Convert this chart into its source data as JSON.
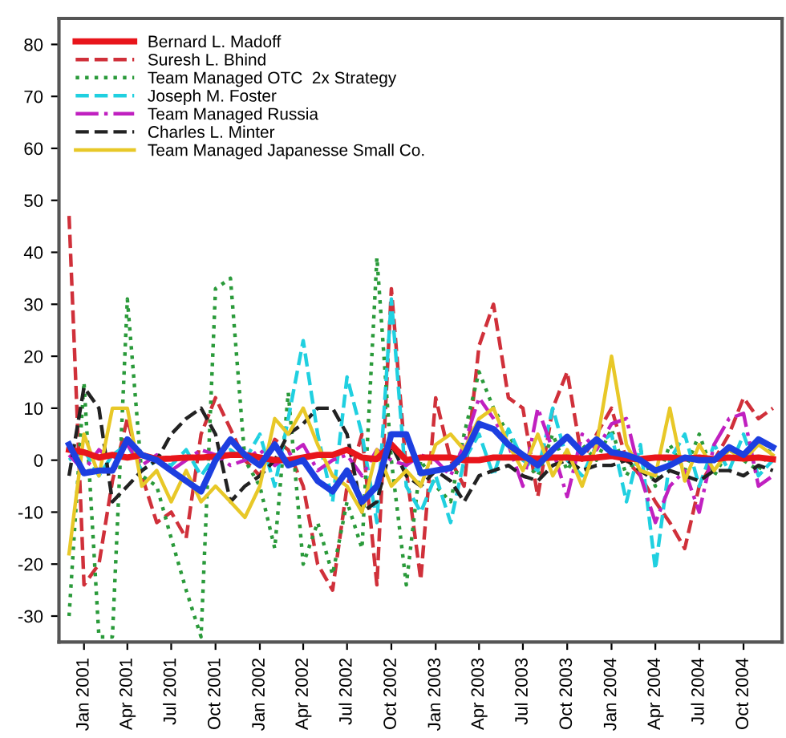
{
  "chart_data": {
    "type": "line",
    "legend": "top left",
    "grid": false,
    "marker": "none",
    "x": [
      "2000-12",
      "2001-01",
      "2001-02",
      "2001-03",
      "2001-04",
      "2001-05",
      "2001-06",
      "2001-07",
      "2001-08",
      "2001-09",
      "2001-10",
      "2001-11",
      "2001-12",
      "2002-01",
      "2002-02",
      "2002-03",
      "2002-04",
      "2002-05",
      "2002-06",
      "2002-07",
      "2002-08",
      "2002-09",
      "2002-10",
      "2002-11",
      "2002-12",
      "2003-01",
      "2003-02",
      "2003-03",
      "2003-04",
      "2003-05",
      "2003-06",
      "2003-07",
      "2003-08",
      "2003-09",
      "2003-10",
      "2003-11",
      "2003-12",
      "2004-01",
      "2004-02",
      "2004-03",
      "2004-04",
      "2004-05",
      "2004-06",
      "2004-07",
      "2004-08",
      "2004-09",
      "2004-10",
      "2004-11",
      "2004-12"
    ],
    "xlim": [
      "2000-11-10",
      "2004-12-20"
    ],
    "xticks": [
      {
        "value": "2001-01",
        "label": "Jan 2001"
      },
      {
        "value": "2001-04",
        "label": "Apr 2001"
      },
      {
        "value": "2001-07",
        "label": "Jul 2001"
      },
      {
        "value": "2001-10",
        "label": "Oct 2001"
      },
      {
        "value": "2002-01",
        "label": "Jan 2002"
      },
      {
        "value": "2002-04",
        "label": "Apr 2002"
      },
      {
        "value": "2002-07",
        "label": "Jul 2002"
      },
      {
        "value": "2002-10",
        "label": "Oct 2002"
      },
      {
        "value": "2003-01",
        "label": "Jan 2003"
      },
      {
        "value": "2003-04",
        "label": "Apr 2003"
      },
      {
        "value": "2003-07",
        "label": "Jul 2003"
      },
      {
        "value": "2003-10",
        "label": "Oct 2003"
      },
      {
        "value": "2004-01",
        "label": "Jan 2004"
      },
      {
        "value": "2004-04",
        "label": "Apr 2004"
      },
      {
        "value": "2004-07",
        "label": "Jul 2004"
      },
      {
        "value": "2004-10",
        "label": "Oct 2004"
      }
    ],
    "ylim": [
      -35,
      85
    ],
    "yticks": [
      -30,
      -20,
      -10,
      0,
      10,
      20,
      30,
      40,
      50,
      60,
      70,
      80
    ],
    "series": [
      {
        "name": "Bernard L. Madoff",
        "color": "#e8151b",
        "line_style": "solid",
        "values": [
          2,
          1.5,
          0.5,
          1,
          0.5,
          1,
          0.2,
          0.3,
          0.5,
          0.5,
          0.7,
          1,
          1,
          0.5,
          0,
          0,
          0.5,
          1,
          1,
          2,
          0.5,
          0.2,
          3,
          0,
          0.5,
          0.5,
          0.5,
          0,
          0,
          0.5,
          0.5,
          0.5,
          0.3,
          0.5,
          0.5,
          0.3,
          0.5,
          0.8,
          0.3,
          0.2,
          0.5,
          0.5,
          0.3,
          0.5,
          0.2,
          0.5,
          0.3,
          0.5,
          0.2
        ]
      },
      {
        "color": "#1d3fe0",
        "line_style": "solid",
        "values": [
          3,
          -2.5,
          -2,
          -2,
          4,
          1,
          0,
          -2,
          -4,
          -6,
          0,
          4,
          1,
          -1,
          3,
          -1,
          0,
          -4,
          -6,
          -2,
          -8,
          -5,
          5,
          5,
          -2.5,
          -2,
          -1.5,
          1,
          7,
          6,
          3,
          1,
          -1,
          2,
          4.5,
          1.5,
          4,
          1.5,
          1,
          0,
          -2,
          -1,
          0.5,
          0,
          0,
          2.5,
          1,
          4,
          2.5
        ]
      },
      {
        "name": "Suresh L. Bhind",
        "color": "#d0303a",
        "line_style": "dashed",
        "values": [
          47,
          -24,
          -20,
          -4,
          8,
          -3,
          -12,
          -10,
          -15,
          5,
          12,
          6,
          0,
          -3,
          4,
          2,
          -5,
          -20,
          -25,
          -5,
          5,
          -24,
          33,
          -2,
          -23,
          12,
          0,
          -5,
          22,
          30,
          12,
          10,
          -7,
          10,
          17,
          0,
          5,
          10,
          0,
          -3,
          -8,
          -12,
          -17,
          -5,
          0,
          5,
          12,
          8,
          10
        ]
      },
      {
        "name": "Team Managed OTC  2x Strategy",
        "color": "#2a9a3a",
        "line_style": "dotted",
        "values": [
          -30,
          15,
          -34,
          -34,
          31,
          -3,
          -5,
          -15,
          -25,
          -34,
          33,
          35,
          0,
          -5,
          -17,
          13,
          -20,
          -12,
          -22,
          -8,
          -17,
          39,
          0,
          -24,
          0,
          -5,
          -8,
          5,
          17,
          10,
          5,
          0,
          -3,
          5,
          -2,
          3,
          0,
          6,
          -3,
          2,
          -5,
          3,
          -2,
          5,
          -3,
          2,
          0,
          -2,
          3
        ]
      },
      {
        "name": "Joseph M. Foster",
        "color": "#20d0e0",
        "line_style": "dashed",
        "values": [
          0,
          2,
          -3,
          1,
          3,
          -2,
          0,
          -1,
          2,
          -3,
          1,
          2,
          0,
          5,
          -5,
          8,
          23,
          5,
          -8,
          16,
          5,
          -12,
          31,
          -5,
          -10,
          -3,
          -12,
          0,
          5,
          -3,
          6,
          0,
          -2,
          10,
          0,
          -3,
          3,
          5,
          -8,
          3,
          -21,
          0,
          5,
          -5,
          3,
          -2,
          5,
          -3,
          0
        ]
      },
      {
        "name": "Team Managed Russia",
        "color": "#c020c0",
        "line_style": "dashdot",
        "values": [
          1,
          -2,
          2,
          0,
          3,
          -1,
          1,
          -2,
          0,
          2,
          1,
          -1,
          0,
          2,
          -1,
          1,
          3,
          -2,
          0,
          1,
          -3,
          2,
          0,
          -1,
          1,
          0,
          -3,
          3,
          12,
          8,
          3,
          -5,
          10,
          2,
          -7,
          5,
          2,
          7,
          8,
          -3,
          -12,
          -5,
          -2,
          -10,
          3,
          8,
          9,
          -5,
          -3
        ]
      },
      {
        "name": "Charles L. Minter",
        "color": "#222222",
        "line_style": "dashed",
        "values": [
          -3,
          14,
          10,
          -8,
          -5,
          -2,
          0,
          5,
          8,
          10,
          5,
          -8,
          -5,
          -3,
          0,
          5,
          7,
          10,
          10,
          5,
          -10,
          -8,
          3,
          -3,
          -5,
          -2,
          -4,
          -8,
          -3,
          -2,
          -1,
          -3,
          -4,
          -1,
          0,
          -2,
          -1,
          -1,
          0,
          -2,
          -4,
          -2,
          -3,
          -4,
          -2,
          -2,
          -3,
          -1,
          -2
        ]
      },
      {
        "name": "Team Managed Japanesse Small Co.",
        "color": "#e8c828",
        "line_style": "solid",
        "values": [
          -18,
          5,
          -3,
          10,
          10,
          -5,
          -2,
          -8,
          -2,
          -8,
          -5,
          -8,
          -11,
          -5,
          8,
          5,
          10,
          3,
          -3,
          -5,
          -10,
          2,
          -5,
          -2,
          -5,
          3,
          5,
          2,
          8,
          10,
          3,
          -2,
          5,
          -3,
          2,
          -5,
          3,
          20,
          3,
          -2,
          -3,
          10,
          -4,
          3,
          -2,
          2,
          0,
          3,
          1
        ]
      }
    ]
  }
}
